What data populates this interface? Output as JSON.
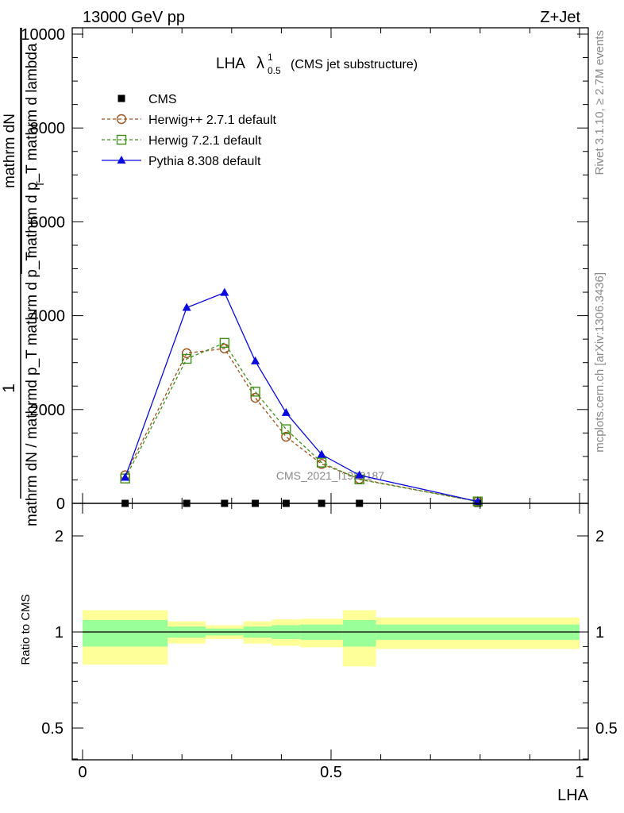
{
  "header": {
    "energy_label": "13000 GeV pp",
    "process_label": "Z+Jet"
  },
  "side_labels": {
    "rivet": "Rivet 3.1.10, ≥ 2.7M events",
    "mcplots": "mcplots.cern.ch [arXiv:1306.3436]"
  },
  "chart_data": {
    "type": "line",
    "title": "LHA",
    "title_symbol": "λ",
    "title_sup": "1",
    "title_sub": "0.5",
    "title_note": "(CMS jet substructure)",
    "xlabel": "LHA",
    "ylabel_main_numerator": "1",
    "ylabel_main_fraction_top": "mathrm dN",
    "ylabel_main_fraction_bottom": "mathrm d p_T mathrm d lambda",
    "ylabel_main_subscript": "T",
    "ylabel_main_denominator": "mathrm dN / mathrmd p_T mathrm d p_T",
    "ylabel_ratio": "Ratio to CMS",
    "watermark": "CMS_2021_I1920187",
    "xlim": [
      0,
      1
    ],
    "ylim_main": [
      0,
      10000
    ],
    "ylim_ratio": [
      0.4,
      2.25
    ],
    "x_ticks": [
      0,
      0.5,
      1
    ],
    "x_tick_labels": [
      "0",
      "0.5",
      "1"
    ],
    "y_ticks_main": [
      0,
      2000,
      4000,
      6000,
      8000,
      10000
    ],
    "y_tick_labels_main": [
      "0",
      "2000",
      "4000",
      "6000",
      "8000",
      "10000"
    ],
    "y_ticks_ratio": [
      0.5,
      1,
      2
    ],
    "y_tick_labels_ratio": [
      "0.5",
      "1",
      "2"
    ],
    "x": [
      0.0857,
      0.2095,
      0.2857,
      0.3476,
      0.4095,
      0.481,
      0.5571,
      0.7952
    ],
    "series": [
      {
        "name": "CMS",
        "style": "square",
        "color": "#000000",
        "values": [
          0,
          0,
          0,
          0,
          0,
          0,
          0,
          0
        ]
      },
      {
        "name": "Herwig++ 2.7.1 default",
        "style": "circle-dashed",
        "color": "#a0521e",
        "values": [
          600,
          3200,
          3300,
          2250,
          1420,
          840,
          520,
          40
        ]
      },
      {
        "name": "Herwig 7.2.1 default",
        "style": "square-dashed",
        "color": "#3f8f16",
        "values": [
          530,
          3080,
          3420,
          2380,
          1580,
          870,
          510,
          40
        ]
      },
      {
        "name": "Pythia 8.308 default",
        "style": "triangle-solid",
        "color": "#0a0adf",
        "values": [
          550,
          4170,
          4490,
          3030,
          1930,
          1040,
          600,
          40
        ]
      }
    ],
    "ratio_bands": [
      {
        "x0": 0.0,
        "x1": 0.1714,
        "in_lo": 0.9,
        "in_hi": 1.09,
        "out_lo": 0.79,
        "out_hi": 1.17
      },
      {
        "x0": 0.1714,
        "x1": 0.2476,
        "in_lo": 0.96,
        "in_hi": 1.04,
        "out_lo": 0.92,
        "out_hi": 1.08
      },
      {
        "x0": 0.2476,
        "x1": 0.3238,
        "in_lo": 0.975,
        "in_hi": 1.025,
        "out_lo": 0.95,
        "out_hi": 1.05
      },
      {
        "x0": 0.3238,
        "x1": 0.381,
        "in_lo": 0.96,
        "in_hi": 1.04,
        "out_lo": 0.92,
        "out_hi": 1.08
      },
      {
        "x0": 0.381,
        "x1": 0.4381,
        "in_lo": 0.95,
        "in_hi": 1.05,
        "out_lo": 0.905,
        "out_hi": 1.095
      },
      {
        "x0": 0.4381,
        "x1": 0.5238,
        "in_lo": 0.945,
        "in_hi": 1.055,
        "out_lo": 0.895,
        "out_hi": 1.1
      },
      {
        "x0": 0.5238,
        "x1": 0.5905,
        "in_lo": 0.9,
        "in_hi": 1.09,
        "out_lo": 0.78,
        "out_hi": 1.17
      },
      {
        "x0": 0.5905,
        "x1": 1.0,
        "in_lo": 0.945,
        "in_hi": 1.055,
        "out_lo": 0.885,
        "out_hi": 1.11
      }
    ],
    "band_colors": {
      "inner": "#99ff99",
      "outer": "#ffff99"
    },
    "ratio_reference": 1,
    "legend_position": "top-left",
    "grid": false
  }
}
